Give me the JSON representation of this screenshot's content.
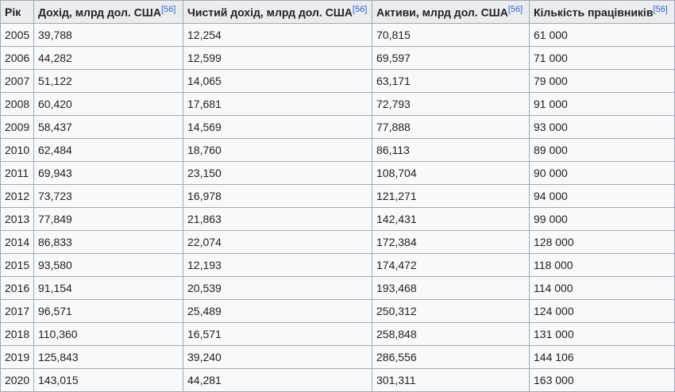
{
  "table": {
    "headers": [
      {
        "label": "Рік",
        "ref": ""
      },
      {
        "label": "Дохід, млрд дол. США",
        "ref": "[56]"
      },
      {
        "label": "Чистий дохід, млрд дол. США",
        "ref": "[56]"
      },
      {
        "label": "Активи, млрд дол. США",
        "ref": "[56]"
      },
      {
        "label": "Кількість працівників",
        "ref": "[56]"
      }
    ],
    "rows": [
      [
        "2005",
        "39,788",
        "12,254",
        "70,815",
        "61 000"
      ],
      [
        "2006",
        "44,282",
        "12,599",
        "69,597",
        "71 000"
      ],
      [
        "2007",
        "51,122",
        "14,065",
        "63,171",
        "79 000"
      ],
      [
        "2008",
        "60,420",
        "17,681",
        "72,793",
        "91 000"
      ],
      [
        "2009",
        "58,437",
        "14,569",
        "77,888",
        "93 000"
      ],
      [
        "2010",
        "62,484",
        "18,760",
        "86,113",
        "89 000"
      ],
      [
        "2011",
        "69,943",
        "23,150",
        "108,704",
        "90 000"
      ],
      [
        "2012",
        "73,723",
        "16,978",
        "121,271",
        "94 000"
      ],
      [
        "2013",
        "77,849",
        "21,863",
        "142,431",
        "99 000"
      ],
      [
        "2014",
        "86,833",
        "22,074",
        "172,384",
        "128 000"
      ],
      [
        "2015",
        "93,580",
        "12,193",
        "174,472",
        "118 000"
      ],
      [
        "2016",
        "91,154",
        "20,539",
        "193,468",
        "114 000"
      ],
      [
        "2017",
        "96,571",
        "25,489",
        "250,312",
        "124 000"
      ],
      [
        "2018",
        "110,360",
        "16,571",
        "258,848",
        "131 000"
      ],
      [
        "2019",
        "125,843",
        "39,240",
        "286,556",
        "144 106"
      ],
      [
        "2020",
        "143,015",
        "44,281",
        "301,311",
        "163 000"
      ]
    ]
  },
  "colors": {
    "header_bg": "#eaecf0",
    "cell_bg": "#f8f9fa",
    "border": "#a2a9b1",
    "text": "#202122",
    "link": "#3366cc"
  }
}
